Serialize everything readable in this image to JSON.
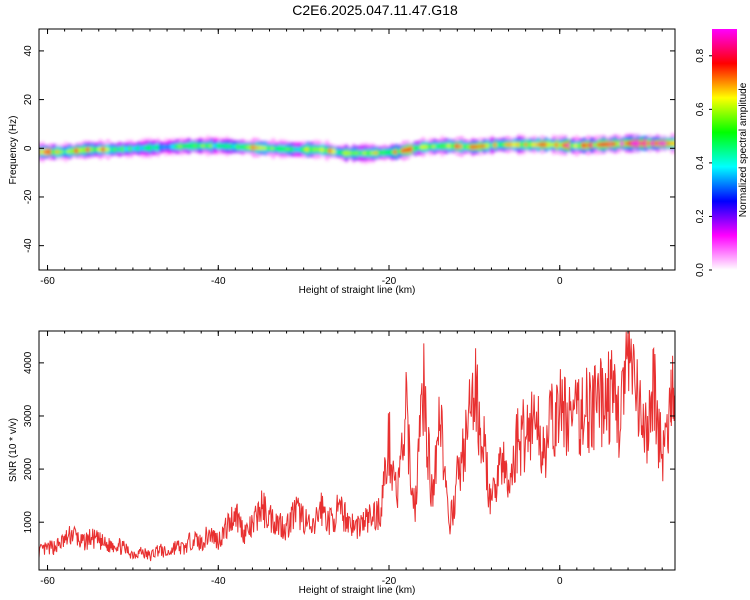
{
  "title": "C2E6.2025.047.11.47.G18",
  "chart_data": [
    {
      "type": "heatmap",
      "xlabel": "Height of straight line (km)",
      "ylabel": "Frequency (Hz)",
      "xlim": [
        -61,
        13.5
      ],
      "ylim": [
        -50,
        49
      ],
      "xticks": [
        -60,
        -40,
        -20,
        0
      ],
      "xtick_labels": [
        "-60",
        "-40",
        "-20",
        "0"
      ],
      "yticks": [
        40,
        20,
        0,
        -20,
        -40
      ],
      "ytick_labels": [
        "40",
        "20",
        "0",
        "-20",
        "-40"
      ],
      "colorbar": {
        "label": "Normalized spectral amplitude",
        "range": [
          0,
          0.9
        ],
        "ticks": [
          0.0,
          0.2,
          0.4,
          0.6,
          0.8
        ],
        "tick_labels": [
          "0.0",
          "0.2",
          "0.4",
          "0.6",
          "0.8"
        ],
        "colormap": [
          "#ffffff",
          "#ff00ff",
          "#0000ff",
          "#00ffff",
          "#00ff00",
          "#ffff00",
          "#ff0000",
          "#ff00ff"
        ]
      },
      "ridge": [
        {
          "x": -61,
          "f": -1.5,
          "amp": 0.9
        },
        {
          "x": -58,
          "f": -1.5,
          "amp": 0.6
        },
        {
          "x": -55,
          "f": -0.5,
          "amp": 0.75
        },
        {
          "x": -52,
          "f": -0.5,
          "amp": 0.6
        },
        {
          "x": -49,
          "f": 0.0,
          "amp": 0.5
        },
        {
          "x": -46,
          "f": 0.5,
          "amp": 0.45
        },
        {
          "x": -43,
          "f": 1.0,
          "amp": 0.6
        },
        {
          "x": -40,
          "f": 1.0,
          "amp": 0.5
        },
        {
          "x": -37,
          "f": 0.5,
          "amp": 0.6
        },
        {
          "x": -34,
          "f": 0.0,
          "amp": 0.65
        },
        {
          "x": -31,
          "f": -0.5,
          "amp": 0.55
        },
        {
          "x": -28,
          "f": -0.5,
          "amp": 0.7
        },
        {
          "x": -25,
          "f": -2.0,
          "amp": 0.6
        },
        {
          "x": -22,
          "f": -2.0,
          "amp": 0.55
        },
        {
          "x": -19,
          "f": -1.5,
          "amp": 0.75
        },
        {
          "x": -16,
          "f": 0.5,
          "amp": 0.6
        },
        {
          "x": -13,
          "f": 1.0,
          "amp": 0.7
        },
        {
          "x": -10,
          "f": 0.5,
          "amp": 0.7
        },
        {
          "x": -7,
          "f": 1.5,
          "amp": 0.65
        },
        {
          "x": -4,
          "f": 1.5,
          "amp": 0.75
        },
        {
          "x": -1,
          "f": 1.5,
          "amp": 0.7
        },
        {
          "x": 2,
          "f": 1.0,
          "amp": 0.8
        },
        {
          "x": 5,
          "f": 1.5,
          "amp": 0.7
        },
        {
          "x": 8,
          "f": 2.0,
          "amp": 0.85
        },
        {
          "x": 11,
          "f": 2.0,
          "amp": 0.8
        },
        {
          "x": 13.5,
          "f": 2.0,
          "amp": 0.85
        }
      ]
    },
    {
      "type": "line",
      "xlabel": "Height of straight line (km)",
      "ylabel": "SNR (10 * v/v)",
      "xlim": [
        -61,
        13.5
      ],
      "ylim": [
        100,
        4600
      ],
      "xticks": [
        -60,
        -40,
        -20,
        0
      ],
      "xtick_labels": [
        "-60",
        "-40",
        "-20",
        "0"
      ],
      "yticks": [
        1000,
        2000,
        3000,
        4000
      ],
      "ytick_labels": [
        "1000",
        "2000",
        "3000",
        "4000"
      ],
      "color": "#e83030",
      "series": [
        {
          "x": [
            -61,
            -60,
            -59,
            -58,
            -57,
            -56,
            -55,
            -54,
            -53,
            -52,
            -51,
            -50,
            -49,
            -48,
            -47,
            -46,
            -45,
            -44,
            -43,
            -42,
            -41,
            -40,
            -39,
            -38,
            -37,
            -36,
            -35,
            -34,
            -33,
            -32,
            -31,
            -30,
            -29,
            -28,
            -27,
            -26,
            -25,
            -24,
            -23,
            -22,
            -21,
            -20,
            -19,
            -18,
            -17,
            -16,
            -15,
            -14,
            -13,
            -12,
            -11,
            -10,
            -9,
            -8,
            -7,
            -6,
            -5,
            -4,
            -3,
            -2,
            -1,
            0,
            1,
            2,
            3,
            4,
            5,
            6,
            7,
            8,
            9,
            10,
            11,
            12,
            13,
            13.5
          ],
          "y": [
            450,
            500,
            550,
            650,
            800,
            600,
            700,
            650,
            550,
            600,
            500,
            400,
            450,
            350,
            500,
            400,
            550,
            500,
            700,
            600,
            800,
            650,
            900,
            1200,
            800,
            900,
            1300,
            1100,
            1000,
            900,
            1200,
            1100,
            800,
            1300,
            1000,
            1200,
            1100,
            900,
            1000,
            1100,
            1200,
            2500,
            1500,
            3000,
            1200,
            3600,
            1500,
            3200,
            800,
            1800,
            2500,
            3500,
            2600,
            1200,
            2300,
            1600,
            2500,
            2700,
            3000,
            2400,
            2800,
            3100,
            3000,
            2900,
            3200,
            3100,
            3300,
            3400,
            3000,
            4100,
            3300,
            2500,
            3600,
            2200,
            3000,
            3700
          ]
        }
      ]
    }
  ]
}
